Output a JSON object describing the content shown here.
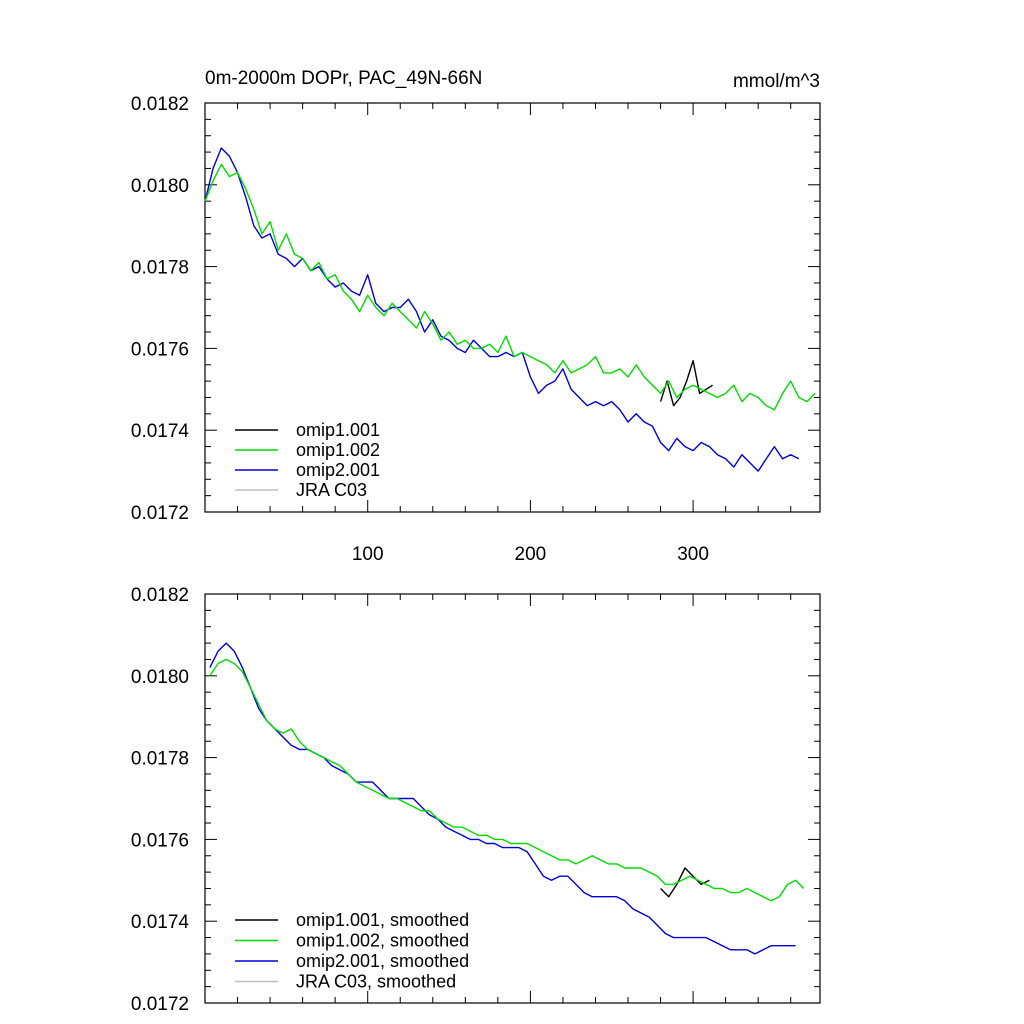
{
  "chart_data": [
    {
      "type": "line",
      "title": "0m-2000m DOPr, PAC_49N-66N",
      "units_label": "mmol/m^3",
      "xlim": [
        0,
        378
      ],
      "ylim": [
        0.0172,
        0.0182
      ],
      "x_ticks": [
        100,
        200,
        300
      ],
      "x_tick_labels": [
        "100",
        "200",
        "300"
      ],
      "y_ticks": [
        0.0172,
        0.0174,
        0.0176,
        0.0178,
        0.018,
        0.0182
      ],
      "y_tick_labels": [
        "0.0172",
        "0.0174",
        "0.0176",
        "0.0178",
        "0.0180",
        "0.0182"
      ],
      "legend_position": "bottom-left",
      "series": [
        {
          "name": "omip1.001",
          "color": "#000000",
          "x": [
            280,
            284,
            288,
            292,
            296,
            300,
            304,
            308,
            312
          ],
          "y": [
            0.01747,
            0.01752,
            0.01746,
            0.01748,
            0.01752,
            0.01757,
            0.01749,
            0.0175,
            0.01751
          ]
        },
        {
          "name": "omip1.002",
          "color": "#00dd00",
          "x": [
            0,
            5,
            10,
            15,
            20,
            25,
            30,
            35,
            40,
            45,
            50,
            55,
            60,
            65,
            70,
            75,
            80,
            85,
            90,
            95,
            100,
            105,
            110,
            115,
            120,
            125,
            130,
            135,
            140,
            145,
            150,
            155,
            160,
            165,
            170,
            175,
            180,
            185,
            190,
            195,
            200,
            205,
            210,
            215,
            220,
            225,
            230,
            235,
            240,
            245,
            250,
            255,
            260,
            265,
            270,
            275,
            280,
            285,
            290,
            295,
            300,
            305,
            310,
            315,
            320,
            325,
            330,
            335,
            340,
            345,
            350,
            355,
            360,
            365,
            370,
            375
          ],
          "y": [
            0.01796,
            0.01801,
            0.01805,
            0.01802,
            0.01803,
            0.01799,
            0.01794,
            0.01788,
            0.01791,
            0.01784,
            0.01788,
            0.01783,
            0.01782,
            0.01779,
            0.01781,
            0.01777,
            0.01778,
            0.01774,
            0.01772,
            0.01769,
            0.01773,
            0.0177,
            0.01768,
            0.01771,
            0.01769,
            0.01767,
            0.01765,
            0.01769,
            0.01766,
            0.01762,
            0.01764,
            0.01761,
            0.01762,
            0.0176,
            0.0176,
            0.01761,
            0.01759,
            0.01763,
            0.01758,
            0.01759,
            0.01758,
            0.01757,
            0.01756,
            0.01754,
            0.01757,
            0.01754,
            0.01755,
            0.01756,
            0.01758,
            0.01754,
            0.01754,
            0.01755,
            0.01753,
            0.01756,
            0.01753,
            0.01751,
            0.01749,
            0.01752,
            0.01748,
            0.0175,
            0.01751,
            0.0175,
            0.01749,
            0.01748,
            0.01749,
            0.01751,
            0.01747,
            0.01749,
            0.01748,
            0.01746,
            0.01745,
            0.01749,
            0.01752,
            0.01748,
            0.01747,
            0.01749
          ]
        },
        {
          "name": "omip2.001",
          "color": "#0000dd",
          "x": [
            0,
            5,
            10,
            15,
            20,
            25,
            30,
            35,
            40,
            45,
            50,
            55,
            60,
            65,
            70,
            75,
            80,
            85,
            90,
            95,
            100,
            105,
            110,
            115,
            120,
            125,
            130,
            135,
            140,
            145,
            150,
            155,
            160,
            165,
            170,
            175,
            180,
            185,
            190,
            195,
            200,
            205,
            210,
            215,
            220,
            225,
            230,
            235,
            240,
            245,
            250,
            255,
            260,
            265,
            270,
            275,
            280,
            285,
            290,
            295,
            300,
            305,
            310,
            315,
            320,
            325,
            330,
            335,
            340,
            345,
            350,
            355,
            360,
            365
          ],
          "y": [
            0.01796,
            0.01804,
            0.01809,
            0.01807,
            0.01803,
            0.01797,
            0.0179,
            0.01787,
            0.01788,
            0.01783,
            0.01782,
            0.0178,
            0.01782,
            0.01779,
            0.0178,
            0.01777,
            0.01775,
            0.01776,
            0.01774,
            0.01773,
            0.01778,
            0.01771,
            0.01769,
            0.0177,
            0.0177,
            0.01772,
            0.01769,
            0.01764,
            0.01767,
            0.01763,
            0.01762,
            0.0176,
            0.01759,
            0.01762,
            0.0176,
            0.01758,
            0.01758,
            0.01759,
            0.01758,
            0.01759,
            0.01753,
            0.01749,
            0.01751,
            0.01752,
            0.01755,
            0.0175,
            0.01748,
            0.01746,
            0.01747,
            0.01746,
            0.01747,
            0.01745,
            0.01742,
            0.01744,
            0.01742,
            0.01741,
            0.01737,
            0.01735,
            0.01738,
            0.01736,
            0.01735,
            0.01737,
            0.01736,
            0.01734,
            0.01733,
            0.01731,
            0.01734,
            0.01732,
            0.0173,
            0.01733,
            0.01736,
            0.01733,
            0.01734,
            0.01733
          ]
        },
        {
          "name": "JRA C03",
          "color": "#c0c0c0",
          "x": [],
          "y": []
        }
      ]
    },
    {
      "type": "line",
      "xlim": [
        0,
        378
      ],
      "ylim": [
        0.0172,
        0.0182
      ],
      "x_ticks": [
        100,
        200,
        300
      ],
      "y_ticks": [
        0.0172,
        0.0174,
        0.0176,
        0.0178,
        0.018,
        0.0182
      ],
      "y_tick_labels": [
        "0.0172",
        "0.0174",
        "0.0176",
        "0.0178",
        "0.0180",
        "0.0182"
      ],
      "legend_position": "bottom-left",
      "series": [
        {
          "name": "omip1.001, smoothed",
          "color": "#000000",
          "x": [
            280,
            285,
            290,
            295,
            300,
            305,
            310
          ],
          "y": [
            0.01748,
            0.01746,
            0.01749,
            0.01753,
            0.01751,
            0.01749,
            0.0175
          ]
        },
        {
          "name": "omip1.002, smoothed",
          "color": "#00dd00",
          "x": [
            3,
            8,
            13,
            18,
            23,
            28,
            33,
            38,
            43,
            48,
            53,
            58,
            63,
            68,
            73,
            78,
            83,
            88,
            93,
            98,
            103,
            108,
            113,
            118,
            123,
            128,
            133,
            138,
            143,
            148,
            153,
            158,
            163,
            168,
            173,
            178,
            183,
            188,
            193,
            198,
            203,
            208,
            213,
            218,
            223,
            228,
            233,
            238,
            243,
            248,
            253,
            258,
            263,
            268,
            273,
            278,
            283,
            288,
            293,
            298,
            303,
            308,
            313,
            318,
            323,
            328,
            333,
            338,
            343,
            348,
            353,
            358,
            363,
            368
          ],
          "y": [
            0.018,
            0.01803,
            0.01804,
            0.01803,
            0.01801,
            0.01797,
            0.01793,
            0.01789,
            0.01787,
            0.01786,
            0.01787,
            0.01784,
            0.01782,
            0.01781,
            0.0178,
            0.01779,
            0.01778,
            0.01776,
            0.01774,
            0.01773,
            0.01772,
            0.01771,
            0.0177,
            0.0177,
            0.01769,
            0.01768,
            0.01767,
            0.01767,
            0.01765,
            0.01764,
            0.01763,
            0.01763,
            0.01762,
            0.01761,
            0.01761,
            0.0176,
            0.0176,
            0.01759,
            0.01759,
            0.01759,
            0.01758,
            0.01757,
            0.01756,
            0.01755,
            0.01755,
            0.01754,
            0.01755,
            0.01756,
            0.01755,
            0.01754,
            0.01754,
            0.01753,
            0.01753,
            0.01753,
            0.01752,
            0.01751,
            0.01749,
            0.01749,
            0.0175,
            0.01751,
            0.0175,
            0.01749,
            0.01748,
            0.01748,
            0.01747,
            0.01747,
            0.01748,
            0.01747,
            0.01746,
            0.01745,
            0.01746,
            0.01749,
            0.0175,
            0.01748
          ]
        },
        {
          "name": "omip2.001, smoothed",
          "color": "#0000dd",
          "x": [
            3,
            8,
            13,
            18,
            23,
            28,
            33,
            38,
            43,
            48,
            53,
            58,
            63,
            68,
            73,
            78,
            83,
            88,
            93,
            98,
            103,
            108,
            113,
            118,
            123,
            128,
            133,
            138,
            143,
            148,
            153,
            158,
            163,
            168,
            173,
            178,
            183,
            188,
            193,
            198,
            203,
            208,
            213,
            218,
            223,
            228,
            233,
            238,
            243,
            248,
            253,
            258,
            263,
            268,
            273,
            278,
            283,
            288,
            293,
            298,
            303,
            308,
            313,
            318,
            323,
            328,
            333,
            338,
            343,
            348,
            353,
            358,
            363
          ],
          "y": [
            0.01802,
            0.01806,
            0.01808,
            0.01806,
            0.01802,
            0.01797,
            0.01792,
            0.01789,
            0.01787,
            0.01785,
            0.01783,
            0.01782,
            0.01782,
            0.01781,
            0.0178,
            0.01778,
            0.01777,
            0.01776,
            0.01774,
            0.01774,
            0.01774,
            0.01772,
            0.0177,
            0.0177,
            0.0177,
            0.0177,
            0.01768,
            0.01766,
            0.01765,
            0.01763,
            0.01762,
            0.01761,
            0.0176,
            0.0176,
            0.01759,
            0.01759,
            0.01758,
            0.01758,
            0.01758,
            0.01757,
            0.01754,
            0.01751,
            0.0175,
            0.01751,
            0.01751,
            0.01749,
            0.01747,
            0.01746,
            0.01746,
            0.01746,
            0.01746,
            0.01745,
            0.01743,
            0.01742,
            0.01741,
            0.01739,
            0.01737,
            0.01736,
            0.01736,
            0.01736,
            0.01736,
            0.01736,
            0.01735,
            0.01734,
            0.01733,
            0.01733,
            0.01733,
            0.01732,
            0.01733,
            0.01734,
            0.01734,
            0.01734,
            0.01734
          ]
        },
        {
          "name": "JRA C03, smoothed",
          "color": "#c0c0c0",
          "x": [],
          "y": []
        }
      ]
    }
  ]
}
